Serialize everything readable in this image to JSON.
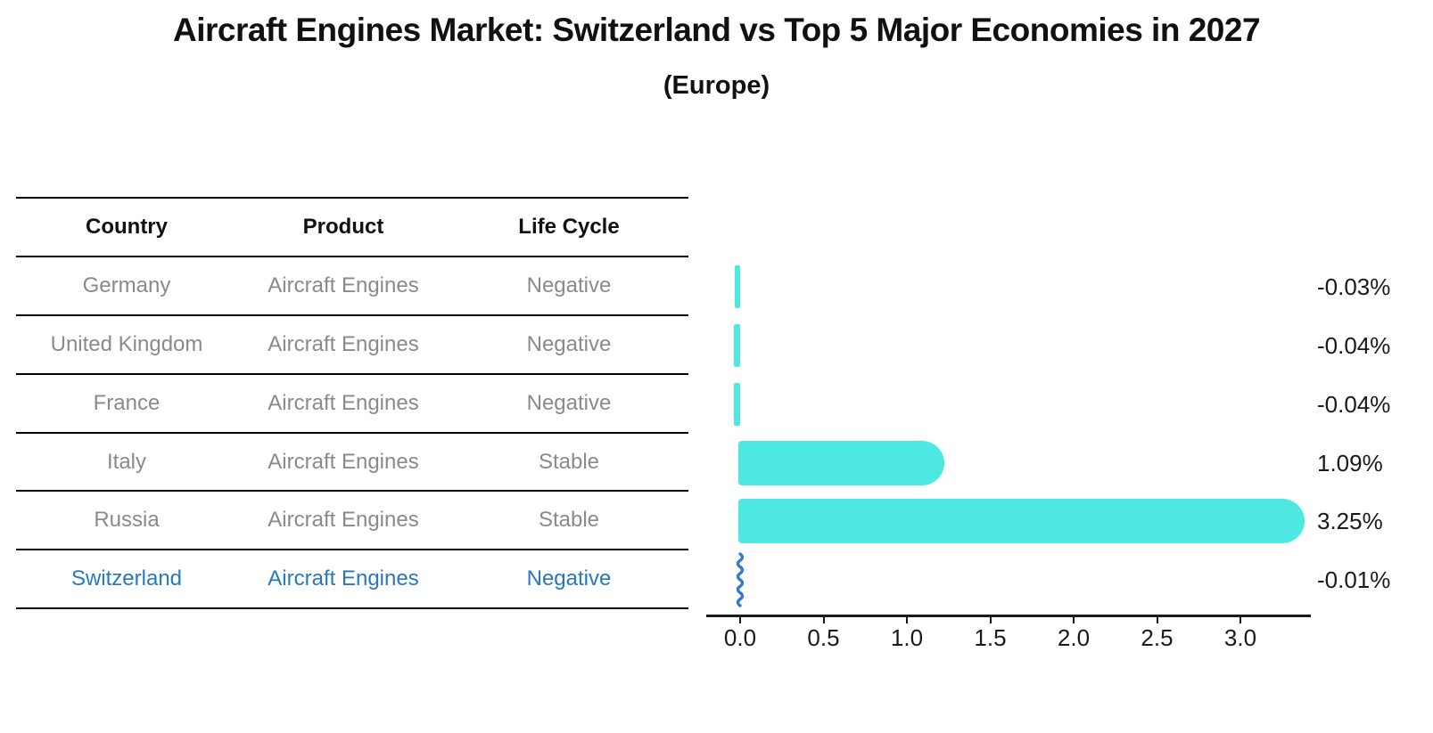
{
  "title": "Aircraft Engines Market: Switzerland vs Top 5 Major Economies in 2027",
  "subtitle": "(Europe)",
  "table": {
    "headers": [
      "Country",
      "Product",
      "Life Cycle"
    ],
    "rows": [
      {
        "country": "Germany",
        "product": "Aircraft Engines",
        "life_cycle": "Negative"
      },
      {
        "country": "United Kingdom",
        "product": "Aircraft Engines",
        "life_cycle": "Negative"
      },
      {
        "country": "France",
        "product": "Aircraft Engines",
        "life_cycle": "Negative"
      },
      {
        "country": "Italy",
        "product": "Aircraft Engines",
        "life_cycle": "Stable"
      },
      {
        "country": "Russia",
        "product": "Aircraft Engines",
        "life_cycle": "Stable"
      },
      {
        "country": "Switzerland",
        "product": "Aircraft Engines",
        "life_cycle": "Negative"
      }
    ],
    "highlight_row": "Switzerland"
  },
  "chart_data": {
    "type": "bar",
    "orientation": "horizontal",
    "categories": [
      "Germany",
      "United Kingdom",
      "France",
      "Italy",
      "Russia",
      "Switzerland"
    ],
    "values": [
      -0.03,
      -0.04,
      -0.04,
      1.09,
      3.25,
      -0.01
    ],
    "value_labels": [
      "-0.03%",
      "-0.04%",
      "-0.04%",
      "1.09%",
      "3.25%",
      "-0.01%"
    ],
    "x_tick_labels": [
      "0.0",
      "0.5",
      "1.0",
      "1.5",
      "2.0",
      "2.5",
      "3.0"
    ],
    "x_tick_values": [
      0,
      0.5,
      1,
      1.5,
      2,
      2.5,
      3
    ],
    "xlim": [
      -0.2,
      3.42
    ],
    "title": "Aircraft Engines Market: Switzerland vs Top 5 Major Economies in 2027 (Europe)",
    "xlabel": "",
    "ylabel": "",
    "grid": false,
    "legend": false,
    "highlight_category": "Switzerland",
    "highlight_index": 5,
    "bar_color": "#4DE8E2",
    "highlight_color": "#3579CC"
  },
  "colors": {
    "background": "#FFFFFF",
    "table_text": "#8A8A8A",
    "header_text": "#111111",
    "highlight_text": "#2878BE",
    "line": "#000000",
    "axis": "#1A1A1A",
    "value_text": "#1A1A1A"
  }
}
